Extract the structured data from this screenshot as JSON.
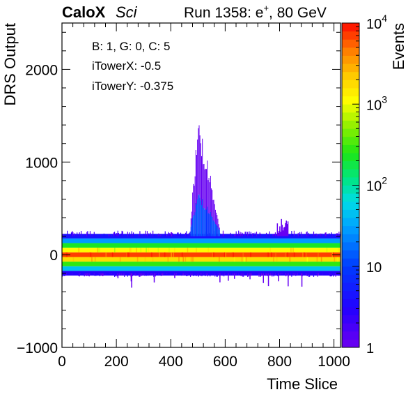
{
  "header": {
    "brand": "CaloX",
    "detector": "Sci",
    "run_prefix": "Run 1358: e",
    "run_particle_sup": "+",
    "run_suffix": ", 80 GeV"
  },
  "annotations": {
    "channel": "B: 1, G: 0, C: 5",
    "itower_x": "iTowerX: -0.5",
    "itower_y": "iTowerY: -0.375"
  },
  "chart_data": {
    "type": "heatmap",
    "xlabel": "Time Slice",
    "ylabel": "DRS Output",
    "zlabel": "Events",
    "xlim": [
      0,
      1024
    ],
    "ylim": [
      -1000,
      2500
    ],
    "zlim": [
      1,
      10000
    ],
    "zscale": "log",
    "x_ticks": [
      0,
      200,
      400,
      600,
      800,
      1000
    ],
    "x_tick_labels": [
      "0",
      "200",
      "400",
      "600",
      "800",
      "1000"
    ],
    "y_ticks": [
      -1000,
      0,
      1000,
      2000
    ],
    "y_tick_labels": [
      "−1000",
      "0",
      "1000",
      "2000"
    ],
    "z_ticks": [
      1,
      10,
      100,
      1000,
      10000
    ],
    "z_tick_labels": [
      {
        "base": "1",
        "exp": ""
      },
      {
        "base": "10",
        "exp": ""
      },
      {
        "base": "10",
        "exp": "2"
      },
      {
        "base": "10",
        "exp": "3"
      },
      {
        "base": "10",
        "exp": "4"
      }
    ],
    "baseline_profile": [
      {
        "y": 200,
        "events": 4
      },
      {
        "y": 150,
        "events": 30
      },
      {
        "y": 100,
        "events": 200
      },
      {
        "y": 50,
        "events": 1200
      },
      {
        "y": 0,
        "events": 7000
      },
      {
        "y": -50,
        "events": 1800
      },
      {
        "y": -100,
        "events": 300
      },
      {
        "y": -150,
        "events": 40
      },
      {
        "y": -200,
        "events": 3
      }
    ],
    "pulse": {
      "x_start": 470,
      "x_peak": 500,
      "x_end": 580,
      "max_y": 1520,
      "peak_events": 1
    },
    "grid": false,
    "colorbar_placement": "right"
  }
}
